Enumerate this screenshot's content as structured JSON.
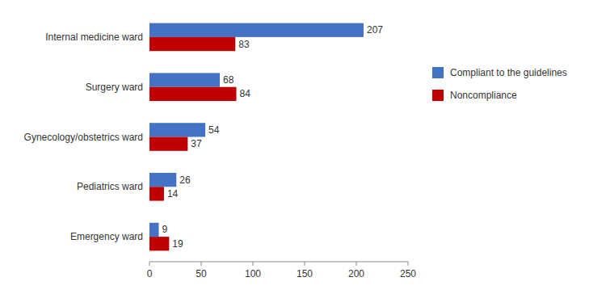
{
  "chart_data": {
    "type": "bar",
    "orientation": "horizontal",
    "categories": [
      "Internal medicine ward",
      "Surgery ward",
      "Gynecology/obstetrics ward",
      "Pediatrics ward",
      "Emergency ward"
    ],
    "series": [
      {
        "name": "Compliant to the guidelines",
        "color": "#4472C4",
        "values": [
          207,
          68,
          54,
          26,
          9
        ]
      },
      {
        "name": "Noncompliance",
        "color": "#C00000",
        "values": [
          83,
          84,
          37,
          14,
          19
        ]
      }
    ],
    "xlim": [
      0,
      250
    ],
    "xticks": [
      0,
      50,
      100,
      150,
      200,
      250
    ],
    "data_labels": true,
    "grid": false,
    "legend": "right"
  }
}
